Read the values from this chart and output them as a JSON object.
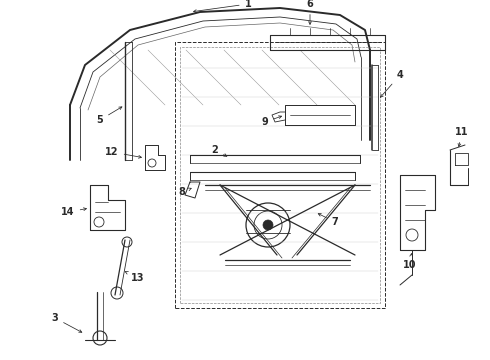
{
  "bg_color": "#ffffff",
  "line_color": "#2a2a2a",
  "fig_width": 4.9,
  "fig_height": 3.6,
  "dpi": 100,
  "label_fontsize": 7.0
}
